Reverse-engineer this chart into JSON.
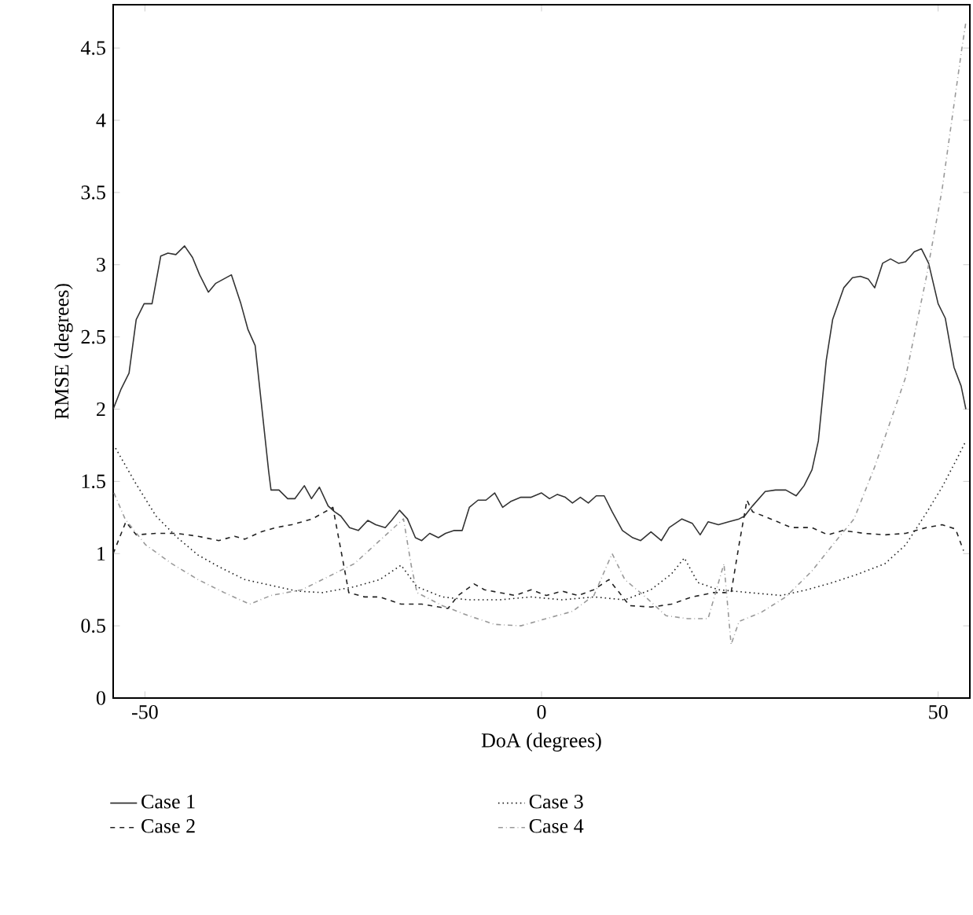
{
  "chart_data": {
    "type": "line",
    "xlabel": "DoA (degrees)",
    "ylabel": "RMSE (degrees)",
    "xlim": [
      -54,
      54
    ],
    "ylim": [
      0,
      4.8
    ],
    "xticks": [
      -50,
      0,
      50
    ],
    "yticks": [
      0,
      0.5,
      1,
      1.5,
      2,
      2.5,
      3,
      3.5,
      4,
      4.5
    ],
    "legend": "bottom",
    "grid": false,
    "marker": "none",
    "series": [
      {
        "name": "Case 1",
        "color": "#333333",
        "line_style": "solid",
        "x": [
          -54.0,
          -53.0,
          -52.0,
          -51.1,
          -50.1,
          -49.1,
          -48.0,
          -47.1,
          -46.1,
          -45.0,
          -44.0,
          -43.1,
          -42.0,
          -41.1,
          -39.1,
          -37.9,
          -37.0,
          -36.1,
          -34.4,
          -34.1,
          -33.1,
          -32.0,
          -31.1,
          -29.9,
          -29.0,
          -28.0,
          -26.9,
          -26.1,
          -25.3,
          -24.2,
          -23.1,
          -21.9,
          -20.9,
          -19.7,
          -18.9,
          -17.9,
          -16.9,
          -15.9,
          -15.1,
          -14.1,
          -13.0,
          -12.1,
          -11.0,
          -10.0,
          -9.1,
          -8.0,
          -7.0,
          -5.9,
          -4.9,
          -3.9,
          -2.6,
          -1.3,
          0,
          1.0,
          2.0,
          3.0,
          3.9,
          4.9,
          5.9,
          6.9,
          7.9,
          8.9,
          10.2,
          11.5,
          12.5,
          13.8,
          15.1,
          16.1,
          17.7,
          19.0,
          20.0,
          21.0,
          22.3,
          23.6,
          24.9,
          25.6,
          26.6,
          28.2,
          29.5,
          30.8,
          32.1,
          33.1,
          34.1,
          34.9,
          35.9,
          36.7,
          38.1,
          39.2,
          40.2,
          41.2,
          42.0,
          43.0,
          44.0,
          45.0,
          45.9,
          47.0,
          47.9,
          48.8,
          50.0,
          50.9,
          52.0,
          52.9,
          53.5
        ],
        "values": [
          2.0,
          2.14,
          2.25,
          2.62,
          2.73,
          2.73,
          3.06,
          3.08,
          3.07,
          3.13,
          3.05,
          2.93,
          2.81,
          2.87,
          2.93,
          2.73,
          2.55,
          2.44,
          1.57,
          1.44,
          1.44,
          1.38,
          1.38,
          1.47,
          1.38,
          1.46,
          1.33,
          1.29,
          1.26,
          1.18,
          1.16,
          1.23,
          1.2,
          1.18,
          1.23,
          1.3,
          1.24,
          1.11,
          1.09,
          1.14,
          1.11,
          1.14,
          1.16,
          1.16,
          1.32,
          1.37,
          1.37,
          1.42,
          1.32,
          1.36,
          1.39,
          1.39,
          1.42,
          1.38,
          1.41,
          1.39,
          1.35,
          1.39,
          1.35,
          1.4,
          1.4,
          1.29,
          1.16,
          1.11,
          1.09,
          1.15,
          1.09,
          1.18,
          1.24,
          1.21,
          1.13,
          1.22,
          1.2,
          1.22,
          1.24,
          1.26,
          1.33,
          1.43,
          1.44,
          1.44,
          1.4,
          1.47,
          1.58,
          1.78,
          2.34,
          2.62,
          2.84,
          2.91,
          2.92,
          2.9,
          2.84,
          3.01,
          3.04,
          3.01,
          3.02,
          3.09,
          3.11,
          3.01,
          2.73,
          2.63,
          2.29,
          2.16,
          2.0
        ]
      },
      {
        "name": "Case 2",
        "color": "#222222",
        "line_style": "dashed",
        "x": [
          -54.0,
          -52.4,
          -51.1,
          -48.6,
          -46.0,
          -43.3,
          -40.7,
          -38.7,
          -37.4,
          -35.4,
          -33.5,
          -31.5,
          -28.9,
          -26.3,
          -24.9,
          -24.3,
          -22.3,
          -20.4,
          -17.7,
          -15.1,
          -11.8,
          -10.5,
          -8.5,
          -7.2,
          -5.3,
          -3.3,
          -1.3,
          0.6,
          2.6,
          4.6,
          6.6,
          8.5,
          9.8,
          11.1,
          13.8,
          16.4,
          19.0,
          21.7,
          23.9,
          24.9,
          25.9,
          26.6,
          28.9,
          31.5,
          34.1,
          36.1,
          38.0,
          40.7,
          43.3,
          45.9,
          48.5,
          50.5,
          52.2,
          53.2
        ],
        "values": [
          1.0,
          1.22,
          1.13,
          1.14,
          1.14,
          1.12,
          1.09,
          1.12,
          1.1,
          1.15,
          1.18,
          1.2,
          1.24,
          1.32,
          0.91,
          0.73,
          0.7,
          0.7,
          0.65,
          0.65,
          0.62,
          0.71,
          0.79,
          0.75,
          0.73,
          0.71,
          0.75,
          0.71,
          0.74,
          0.71,
          0.75,
          0.82,
          0.73,
          0.64,
          0.63,
          0.65,
          0.7,
          0.73,
          0.73,
          1.06,
          1.37,
          1.29,
          1.24,
          1.18,
          1.18,
          1.13,
          1.16,
          1.14,
          1.13,
          1.14,
          1.18,
          1.2,
          1.17,
          1.02
        ]
      },
      {
        "name": "Case 3",
        "color": "#222222",
        "line_style": "dotted",
        "x": [
          -53.7,
          -51.2,
          -48.6,
          -45.9,
          -43.3,
          -40.7,
          -37.4,
          -34.1,
          -30.8,
          -27.6,
          -23.6,
          -20.4,
          -17.7,
          -15.7,
          -12.5,
          -9.2,
          -5.3,
          -1.3,
          2.6,
          6.6,
          10.5,
          13.8,
          16.4,
          18.0,
          19.7,
          22.3,
          26.2,
          30.2,
          33.5,
          36.7,
          40.0,
          43.3,
          45.9,
          48.5,
          50.5,
          52.5,
          53.5
        ],
        "values": [
          1.73,
          1.49,
          1.26,
          1.11,
          0.99,
          0.91,
          0.82,
          0.78,
          0.74,
          0.73,
          0.77,
          0.82,
          0.92,
          0.77,
          0.7,
          0.68,
          0.68,
          0.7,
          0.68,
          0.7,
          0.68,
          0.75,
          0.86,
          0.97,
          0.8,
          0.75,
          0.73,
          0.71,
          0.75,
          0.8,
          0.86,
          0.93,
          1.06,
          1.28,
          1.46,
          1.67,
          1.78
        ]
      },
      {
        "name": "Case 4",
        "color": "#999999",
        "line_style": "dashdot",
        "x": [
          -53.9,
          -52.5,
          -49.9,
          -46.6,
          -43.3,
          -40.0,
          -36.8,
          -34.1,
          -30.2,
          -26.9,
          -23.6,
          -20.4,
          -17.4,
          -16.4,
          -15.7,
          -12.5,
          -9.2,
          -5.9,
          -2.6,
          0.6,
          3.9,
          6.6,
          8.9,
          10.5,
          13.1,
          15.7,
          18.4,
          21.0,
          23.0,
          23.9,
          24.9,
          27.6,
          30.8,
          34.1,
          36.7,
          39.4,
          42.0,
          45.9,
          48.5,
          50.5,
          51.8,
          53.0,
          53.5
        ],
        "values": [
          1.42,
          1.24,
          1.06,
          0.93,
          0.82,
          0.73,
          0.65,
          0.71,
          0.75,
          0.84,
          0.93,
          1.09,
          1.24,
          0.91,
          0.73,
          0.64,
          0.57,
          0.51,
          0.5,
          0.55,
          0.6,
          0.71,
          1.0,
          0.82,
          0.7,
          0.57,
          0.55,
          0.55,
          0.93,
          0.37,
          0.53,
          0.59,
          0.7,
          0.88,
          1.06,
          1.24,
          1.6,
          2.22,
          2.91,
          3.52,
          4.03,
          4.5,
          4.68
        ]
      }
    ]
  }
}
